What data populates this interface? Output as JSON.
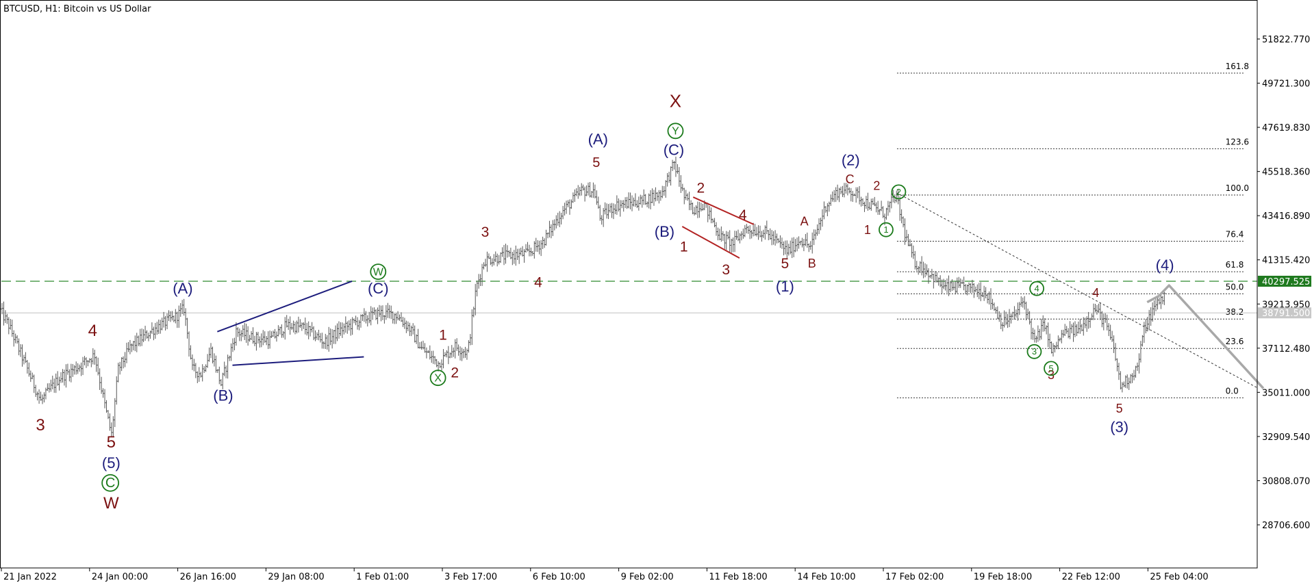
{
  "chart_data": {
    "type": "candlestick",
    "title": "BTCUSD, H1:  Bitcoin vs US Dollar",
    "symbol": "BTCUSD",
    "timeframe": "H1",
    "x_ticks": [
      "21 Jan 2022",
      "24 Jan 00:00",
      "26 Jan 16:00",
      "29 Jan 08:00",
      "1 Feb 01:00",
      "3 Feb 17:00",
      "6 Feb 10:00",
      "9 Feb 02:00",
      "11 Feb 18:00",
      "14 Feb 10:00",
      "17 Feb 02:00",
      "19 Feb 18:00",
      "22 Feb 12:00",
      "25 Feb 04:00"
    ],
    "y_ticks": [
      "51822.770",
      "49721.300",
      "47619.830",
      "45518.360",
      "43416.890",
      "41315.420",
      "39213.950",
      "37112.480",
      "35011.000",
      "32909.540",
      "30808.070",
      "28706.600"
    ],
    "ylim": [
      27500,
      53300
    ],
    "price_path": [
      [
        0,
        38900
      ],
      [
        10,
        38200
      ],
      [
        28,
        36500
      ],
      [
        48,
        34600
      ],
      [
        70,
        35700
      ],
      [
        95,
        36300
      ],
      [
        112,
        36800
      ],
      [
        125,
        34200
      ],
      [
        132,
        33000
      ],
      [
        140,
        36100
      ],
      [
        155,
        37200
      ],
      [
        185,
        38100
      ],
      [
        208,
        38600
      ],
      [
        218,
        39000
      ],
      [
        228,
        36100
      ],
      [
        238,
        35900
      ],
      [
        250,
        37000
      ],
      [
        262,
        35400
      ],
      [
        280,
        37900
      ],
      [
        300,
        37600
      ],
      [
        320,
        37500
      ],
      [
        340,
        38200
      ],
      [
        360,
        38100
      ],
      [
        385,
        37400
      ],
      [
        405,
        38000
      ],
      [
        425,
        38400
      ],
      [
        450,
        38800
      ],
      [
        470,
        38700
      ],
      [
        485,
        38100
      ],
      [
        500,
        37100
      ],
      [
        520,
        36400
      ],
      [
        540,
        37200
      ],
      [
        555,
        36900
      ],
      [
        565,
        40000
      ],
      [
        575,
        41300
      ],
      [
        600,
        41500
      ],
      [
        625,
        41600
      ],
      [
        645,
        42200
      ],
      [
        665,
        43500
      ],
      [
        690,
        44600
      ],
      [
        705,
        44600
      ],
      [
        712,
        43300
      ],
      [
        730,
        43900
      ],
      [
        760,
        44100
      ],
      [
        785,
        44500
      ],
      [
        800,
        45900
      ],
      [
        812,
        44300
      ],
      [
        822,
        43700
      ],
      [
        835,
        44000
      ],
      [
        855,
        42400
      ],
      [
        870,
        42100
      ],
      [
        885,
        42800
      ],
      [
        910,
        42600
      ],
      [
        935,
        41700
      ],
      [
        950,
        42300
      ],
      [
        962,
        41900
      ],
      [
        980,
        43900
      ],
      [
        995,
        44600
      ],
      [
        1010,
        44600
      ],
      [
        1030,
        44000
      ],
      [
        1050,
        43500
      ],
      [
        1063,
        44400
      ],
      [
        1075,
        42400
      ],
      [
        1085,
        41200
      ],
      [
        1100,
        40800
      ],
      [
        1120,
        40000
      ],
      [
        1145,
        40000
      ],
      [
        1170,
        39800
      ],
      [
        1190,
        38300
      ],
      [
        1205,
        38700
      ],
      [
        1215,
        39400
      ],
      [
        1228,
        37400
      ],
      [
        1240,
        38300
      ],
      [
        1248,
        36900
      ],
      [
        1262,
        37800
      ],
      [
        1280,
        38000
      ],
      [
        1300,
        39000
      ],
      [
        1312,
        38300
      ],
      [
        1322,
        37100
      ],
      [
        1330,
        35300
      ],
      [
        1340,
        35700
      ],
      [
        1350,
        36200
      ],
      [
        1358,
        38000
      ],
      [
        1366,
        38700
      ],
      [
        1374,
        39300
      ],
      [
        1382,
        39600
      ]
    ],
    "horizontal_lines": [
      {
        "price": 40297.525,
        "label": "40297.525",
        "style": "dashed",
        "color": "#2e8b2e"
      },
      {
        "price": 38791.5,
        "label": "38791.500",
        "style": "solid",
        "color": "#c0c0c0"
      }
    ],
    "fibonacci_levels": [
      {
        "level": "161.8",
        "price": 50200
      },
      {
        "level": "123.6",
        "price": 46600
      },
      {
        "level": "100.0",
        "price": 44400
      },
      {
        "level": "76.4",
        "price": 42200
      },
      {
        "level": "61.8",
        "price": 40750
      },
      {
        "level": "50.0",
        "price": 39700
      },
      {
        "level": "38.2",
        "price": 38500
      },
      {
        "level": "23.6",
        "price": 37100
      },
      {
        "level": "0.0",
        "price": 34750
      }
    ],
    "projection": [
      [
        1362,
        39300
      ],
      [
        1376,
        39600
      ],
      [
        1388,
        40100
      ],
      [
        1500,
        35200
      ]
    ],
    "wave_labels": [
      {
        "text": "3",
        "x": 48,
        "price": 33400,
        "color": "#7b1010",
        "size": 24
      },
      {
        "text": "4",
        "x": 110,
        "price": 37900,
        "color": "#7b1010",
        "size": 24
      },
      {
        "text": "5",
        "x": 132,
        "price": 32600,
        "color": "#7b1010",
        "size": 24
      },
      {
        "text": "(5)",
        "x": 132,
        "price": 31600,
        "color": "#1c1c7c",
        "size": 22
      },
      {
        "text": "W",
        "x": 132,
        "price": 29700,
        "color": "#7b1010",
        "size": 24
      },
      {
        "text": "(A)",
        "x": 217,
        "price": 39900,
        "color": "#1c1c7c",
        "size": 22
      },
      {
        "text": "(B)",
        "x": 265,
        "price": 34800,
        "color": "#1c1c7c",
        "size": 22
      },
      {
        "text": "(C)",
        "x": 449,
        "price": 39900,
        "color": "#1c1c7c",
        "size": 22
      },
      {
        "text": "1",
        "x": 526,
        "price": 37700,
        "color": "#7b1010",
        "size": 21
      },
      {
        "text": "2",
        "x": 540,
        "price": 35900,
        "color": "#7b1010",
        "size": 21
      },
      {
        "text": "3",
        "x": 576,
        "price": 42600,
        "color": "#7b1010",
        "size": 21
      },
      {
        "text": "4",
        "x": 639,
        "price": 40200,
        "color": "#7b1010",
        "size": 21
      },
      {
        "text": "(A)",
        "x": 710,
        "price": 47000,
        "color": "#1c1c7c",
        "size": 22
      },
      {
        "text": "5",
        "x": 708,
        "price": 45900,
        "color": "#7b1010",
        "size": 20
      },
      {
        "text": "X",
        "x": 802,
        "price": 48800,
        "color": "#7b1010",
        "size": 26
      },
      {
        "text": "(C)",
        "x": 800,
        "price": 46500,
        "color": "#1c1c7c",
        "size": 22
      },
      {
        "text": "(B)",
        "x": 789,
        "price": 42600,
        "color": "#1c1c7c",
        "size": 22
      },
      {
        "text": "1",
        "x": 812,
        "price": 41900,
        "color": "#7b1010",
        "size": 21
      },
      {
        "text": "2",
        "x": 832,
        "price": 44700,
        "color": "#7b1010",
        "size": 21
      },
      {
        "text": "3",
        "x": 862,
        "price": 40800,
        "color": "#7b1010",
        "size": 21
      },
      {
        "text": "4",
        "x": 882,
        "price": 43400,
        "color": "#7b1010",
        "size": 21
      },
      {
        "text": "5",
        "x": 932,
        "price": 41100,
        "color": "#7b1010",
        "size": 21
      },
      {
        "text": "(1)",
        "x": 932,
        "price": 40000,
        "color": "#1c1c7c",
        "size": 22
      },
      {
        "text": "A",
        "x": 955,
        "price": 43100,
        "color": "#7b1010",
        "size": 18
      },
      {
        "text": "B",
        "x": 964,
        "price": 41100,
        "color": "#7b1010",
        "size": 18
      },
      {
        "text": "(2)",
        "x": 1010,
        "price": 46000,
        "color": "#1c1c7c",
        "size": 22
      },
      {
        "text": "C",
        "x": 1009,
        "price": 45100,
        "color": "#7b1010",
        "size": 18
      },
      {
        "text": "2",
        "x": 1041,
        "price": 44800,
        "color": "#7b1010",
        "size": 18
      },
      {
        "text": "1",
        "x": 1030,
        "price": 42700,
        "color": "#7b1010",
        "size": 18
      },
      {
        "text": "3",
        "x": 1248,
        "price": 35800,
        "color": "#7b1010",
        "size": 18
      },
      {
        "text": "4",
        "x": 1301,
        "price": 39700,
        "color": "#7b1010",
        "size": 18
      },
      {
        "text": "5",
        "x": 1329,
        "price": 34200,
        "color": "#7b1010",
        "size": 18
      },
      {
        "text": "(3)",
        "x": 1329,
        "price": 33300,
        "color": "#1c1c7c",
        "size": 22
      },
      {
        "text": "(4)",
        "x": 1383,
        "price": 41000,
        "color": "#1c1c7c",
        "size": 22
      }
    ],
    "circled_labels": [
      {
        "text": "C",
        "x": 131,
        "price": 30700,
        "color": "#1a7a1a",
        "r": 12,
        "size": 20
      },
      {
        "text": "W",
        "x": 449,
        "price": 40750,
        "color": "#1a7a1a",
        "r": 11,
        "size": 16
      },
      {
        "text": "X",
        "x": 520,
        "price": 35700,
        "color": "#1a7a1a",
        "r": 11,
        "size": 16
      },
      {
        "text": "Y",
        "x": 802,
        "price": 47450,
        "color": "#1a7a1a",
        "r": 11,
        "size": 16
      },
      {
        "text": "1",
        "x": 1052,
        "price": 42750,
        "color": "#1a7a1a",
        "r": 10,
        "size": 13
      },
      {
        "text": "2",
        "x": 1067,
        "price": 44550,
        "color": "#1a7a1a",
        "r": 10,
        "size": 13
      },
      {
        "text": "4",
        "x": 1231,
        "price": 39950,
        "color": "#1a7a1a",
        "r": 10,
        "size": 13
      },
      {
        "text": "3",
        "x": 1228,
        "price": 36950,
        "color": "#1a7a1a",
        "r": 10,
        "size": 13
      },
      {
        "text": "5",
        "x": 1248,
        "price": 36150,
        "color": "#1a7a1a",
        "r": 10,
        "size": 13
      }
    ],
    "trendlines": [
      {
        "from": [
          258,
          37900
        ],
        "to": [
          418,
          40300
        ],
        "color": "#1c1c7c"
      },
      {
        "from": [
          276,
          36300
        ],
        "to": [
          432,
          36700
        ],
        "color": "#1c1c7c"
      },
      {
        "from": [
          823,
          44300
        ],
        "to": [
          895,
          43000
        ],
        "color": "#b22222"
      },
      {
        "from": [
          810,
          42900
        ],
        "to": [
          878,
          41400
        ],
        "color": "#b22222"
      }
    ],
    "dotted_trendline": {
      "from": [
        1065,
        44500
      ],
      "to": [
        1494,
        35200
      ]
    }
  }
}
